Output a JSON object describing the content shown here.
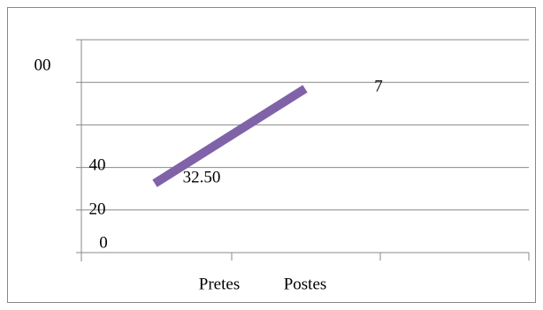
{
  "chart_data": {
    "type": "line",
    "categories": [
      "Pretes",
      "Postes"
    ],
    "series": [
      {
        "color": "#7f62a8",
        "values": [
          32.5,
          77
        ]
      }
    ],
    "value_labels": [
      "32.50"
    ],
    "annotations": [
      "7"
    ],
    "ylim": [
      0,
      100
    ],
    "yticks": [
      0,
      20,
      40,
      {
        "value": 60
      },
      {
        "value": 80
      },
      {
        "value": 100,
        "label": "00"
      }
    ],
    "grid": true
  }
}
